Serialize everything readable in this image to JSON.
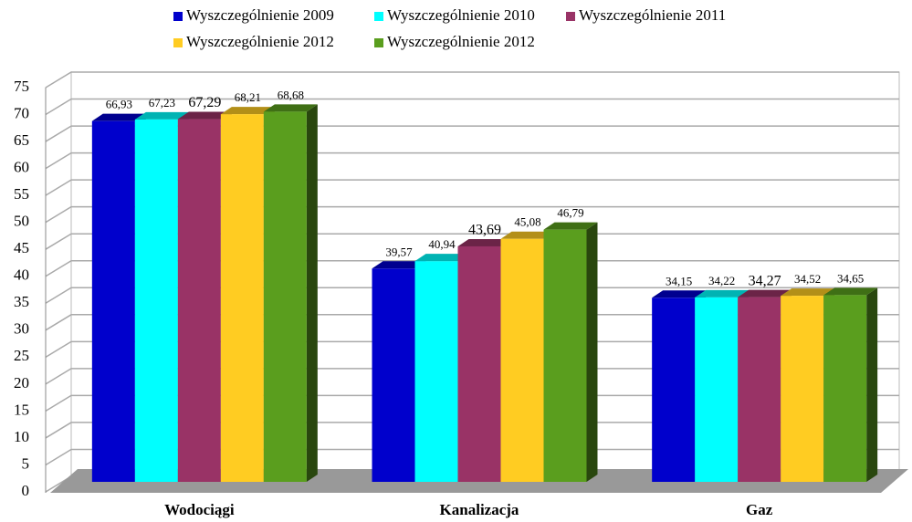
{
  "chart_data": {
    "type": "bar3d",
    "categories": [
      "Wodociągi",
      "Kanalizacja",
      "Gaz"
    ],
    "series": [
      {
        "name": "Wyszczególnienie 2009",
        "color": "#0000cc",
        "values": [
          66.93,
          39.57,
          34.15
        ],
        "value_labels": [
          "66,93",
          "39,57",
          "34,15"
        ]
      },
      {
        "name": "Wyszczególnienie 2010",
        "color": "#00ffff",
        "values": [
          67.23,
          40.94,
          34.22
        ],
        "value_labels": [
          "67,23",
          "40,94",
          "34,22"
        ]
      },
      {
        "name": "Wyszczególnienie 2011",
        "color": "#993366",
        "values": [
          67.29,
          43.69,
          34.27
        ],
        "value_labels": [
          "67,29",
          "43,69",
          "34,27"
        ]
      },
      {
        "name": "Wyszczególnienie 2012",
        "color": "#ffcc22",
        "values": [
          68.21,
          45.08,
          34.52
        ],
        "value_labels": [
          "68,21",
          "45,08",
          "34,52"
        ]
      },
      {
        "name": "Wyszczególnienie 2012",
        "color": "#5a9e1e",
        "values": [
          68.68,
          46.79,
          34.65
        ],
        "value_labels": [
          "68,68",
          "46,79",
          "34,65"
        ]
      }
    ],
    "ylim": [
      0,
      75
    ],
    "yticks": [
      0,
      5,
      10,
      15,
      20,
      25,
      30,
      35,
      40,
      45,
      50,
      55,
      60,
      65,
      70,
      75
    ],
    "grid": true
  }
}
